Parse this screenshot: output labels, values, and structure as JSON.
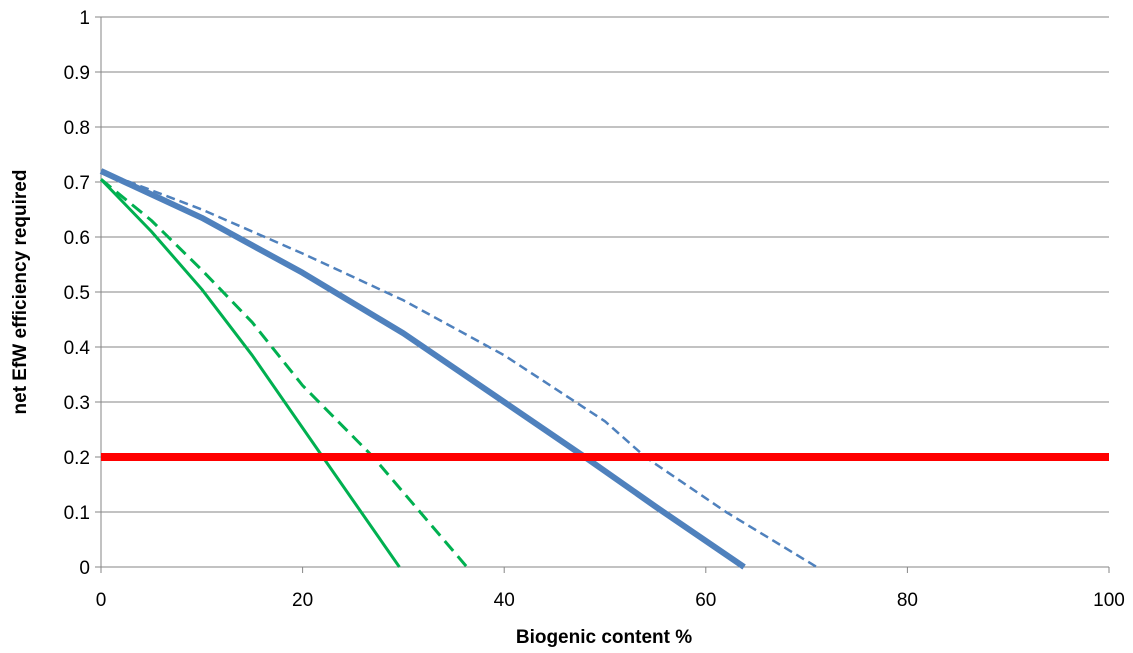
{
  "chart_data": {
    "type": "line",
    "title": "",
    "xlabel": "Biogenic content %",
    "ylabel": "net EfW efficiency required",
    "xlim": [
      0,
      100
    ],
    "ylim": [
      0,
      1
    ],
    "x_ticks": [
      "0",
      "20",
      "40",
      "60",
      "80",
      "100"
    ],
    "y_ticks": [
      "0",
      "0.1",
      "0.2",
      "0.3",
      "0.4",
      "0.5",
      "0.6",
      "0.7",
      "0.8",
      "0.9",
      "1"
    ],
    "grid": "horizontal",
    "legend": "none",
    "series": [
      {
        "color": "#4F81BD",
        "style": "solid",
        "thickness": "thick",
        "points": [
          [
            0,
            0.72
          ],
          [
            10,
            0.635
          ],
          [
            20,
            0.535
          ],
          [
            30,
            0.425
          ],
          [
            40,
            0.3
          ],
          [
            48,
            0.2
          ],
          [
            55,
            0.11
          ],
          [
            63.8,
            0.0
          ]
        ]
      },
      {
        "color": "#4F81BD",
        "style": "dashed",
        "thickness": "thin",
        "points": [
          [
            0,
            0.72
          ],
          [
            10,
            0.65
          ],
          [
            20,
            0.57
          ],
          [
            30,
            0.485
          ],
          [
            40,
            0.385
          ],
          [
            50,
            0.265
          ],
          [
            54,
            0.2
          ],
          [
            62,
            0.1
          ],
          [
            71,
            0.0
          ]
        ]
      },
      {
        "color": "#00B050",
        "style": "solid",
        "thickness": "medium",
        "points": [
          [
            0,
            0.705
          ],
          [
            5,
            0.61
          ],
          [
            10,
            0.505
          ],
          [
            15,
            0.385
          ],
          [
            22,
            0.2
          ],
          [
            29.6,
            0.0
          ]
        ]
      },
      {
        "color": "#00B050",
        "style": "dashed",
        "thickness": "medium",
        "points": [
          [
            0,
            0.705
          ],
          [
            5,
            0.63
          ],
          [
            10,
            0.54
          ],
          [
            15,
            0.445
          ],
          [
            20,
            0.33
          ],
          [
            27,
            0.2
          ],
          [
            36.3,
            0.0
          ]
        ]
      },
      {
        "color": "#FF0000",
        "style": "solid",
        "thickness": "extra-thick",
        "points": [
          [
            0,
            0.2
          ],
          [
            100,
            0.2
          ]
        ]
      }
    ]
  }
}
